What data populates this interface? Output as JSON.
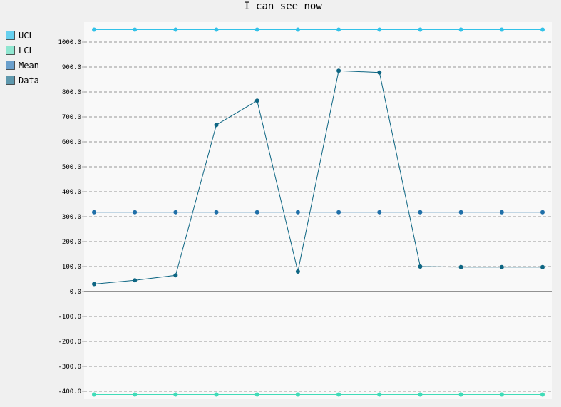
{
  "chart_data": {
    "type": "line",
    "title": "I can see now",
    "xlabel": "",
    "ylabel": "",
    "ylim": [
      -420,
      1070
    ],
    "yticks": [
      -400,
      -300,
      -200,
      -100,
      0,
      100,
      200,
      300,
      400,
      500,
      600,
      700,
      800,
      900,
      1000
    ],
    "ytick_labels": [
      "-400.0",
      "-300.0",
      "-200.0",
      "-100.0",
      "0.0",
      "100.0",
      "200.0",
      "300.0",
      "400.0",
      "500.0",
      "600.0",
      "700.0",
      "800.0",
      "900.0",
      "1000.0"
    ],
    "x": [
      1,
      2,
      3,
      4,
      5,
      6,
      7,
      8,
      9,
      10,
      11,
      12
    ],
    "grid": "horizontal-dashed",
    "legend_position": "top-left-outside",
    "series": [
      {
        "name": "UCL",
        "color": "#33c2e8",
        "legend_color": "#66d0ef",
        "values": [
          1050,
          1050,
          1050,
          1050,
          1050,
          1050,
          1050,
          1050,
          1050,
          1050,
          1050,
          1050
        ]
      },
      {
        "name": "LCL",
        "color": "#40dcb8",
        "legend_color": "#8fe6d0",
        "values": [
          -413,
          -413,
          -413,
          -413,
          -413,
          -413,
          -413,
          -413,
          -413,
          -413,
          -413,
          -413
        ]
      },
      {
        "name": "Mean",
        "color": "#1f6fa8",
        "legend_color": "#6a9fcc",
        "values": [
          318,
          318,
          318,
          318,
          318,
          318,
          318,
          318,
          318,
          318,
          318,
          318
        ]
      },
      {
        "name": "Data",
        "color": "#0e6683",
        "legend_color": "#5e98ad",
        "values": [
          30,
          45,
          65,
          668,
          765,
          80,
          885,
          878,
          100,
          98,
          98,
          98
        ]
      }
    ]
  }
}
